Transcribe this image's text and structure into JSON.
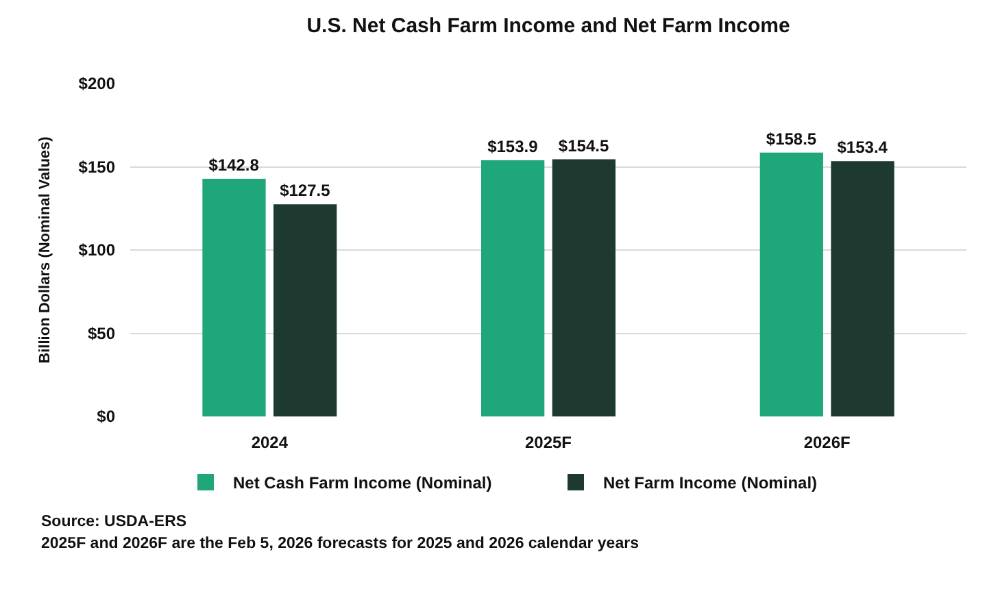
{
  "chart_data": {
    "type": "bar",
    "title": "U.S. Net Cash Farm Income and Net Farm Income",
    "ylabel": "Billion Dollars (Nominal Values)",
    "categories": [
      "2024",
      "2025F",
      "2026F"
    ],
    "series": [
      {
        "name": "Net Cash Farm Income (Nominal)",
        "color": "#1fa67a",
        "values": [
          142.8,
          153.9,
          158.5
        ],
        "value_labels": [
          "$142.8",
          "$153.9",
          "$158.5"
        ]
      },
      {
        "name": "Net Farm Income (Nominal)",
        "color": "#1e3a30",
        "values": [
          127.5,
          154.5,
          153.4
        ],
        "value_labels": [
          "$127.5",
          "$154.5",
          "$153.4"
        ]
      }
    ],
    "ylim": [
      0,
      200
    ],
    "yticks": [
      {
        "value": 0,
        "label": "$0"
      },
      {
        "value": 50,
        "label": "$50"
      },
      {
        "value": 100,
        "label": "$100"
      },
      {
        "value": 150,
        "label": "$150"
      },
      {
        "value": 200,
        "label": "$200"
      }
    ],
    "grid": "y",
    "legend": "bottom",
    "annotations": [
      "Source: USDA-ERS",
      "2025F and 2026F are the Feb 5, 2026 forecasts for 2025 and 2026 calendar years"
    ]
  }
}
